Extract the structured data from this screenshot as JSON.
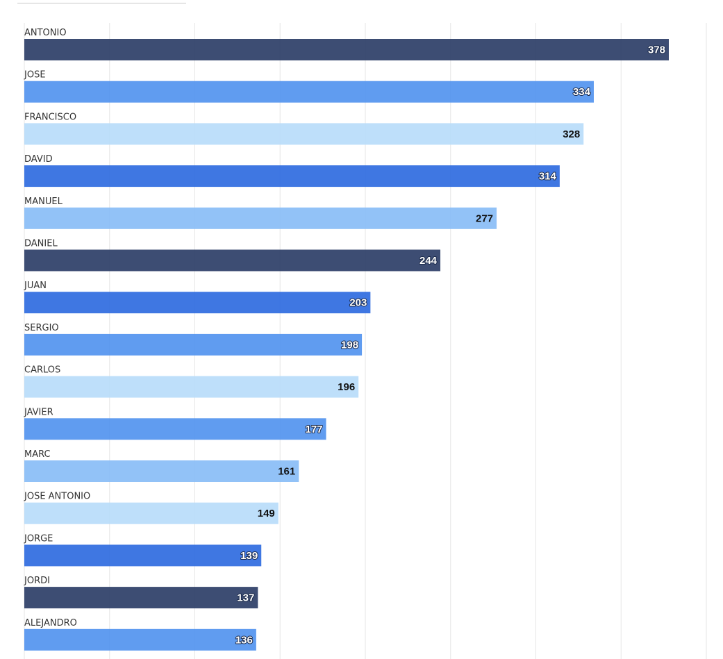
{
  "chart_data": {
    "type": "bar",
    "orientation": "horizontal",
    "title": "",
    "xlabel": "",
    "ylabel": "",
    "xlim": [
      0,
      400
    ],
    "grid": true,
    "legend": "none",
    "categories": [
      "ANTONIO",
      "JOSE",
      "FRANCISCO",
      "DAVID",
      "MANUEL",
      "DANIEL",
      "JUAN",
      "SERGIO",
      "CARLOS",
      "JAVIER",
      "MARC",
      "JOSE ANTONIO",
      "JORGE",
      "JORDI",
      "ALEJANDRO"
    ],
    "values": [
      378,
      334,
      328,
      314,
      277,
      244,
      203,
      198,
      196,
      177,
      161,
      149,
      139,
      137,
      136
    ],
    "colors": [
      "#2c3e67",
      "#5294ef",
      "#b9dcfa",
      "#2f6be0",
      "#89bdf6",
      "#2c3e67",
      "#2f6be0",
      "#5294ef",
      "#b9dcfa",
      "#5294ef",
      "#89bdf6",
      "#b9dcfa",
      "#2f6be0",
      "#2c3e67",
      "#5294ef"
    ]
  }
}
